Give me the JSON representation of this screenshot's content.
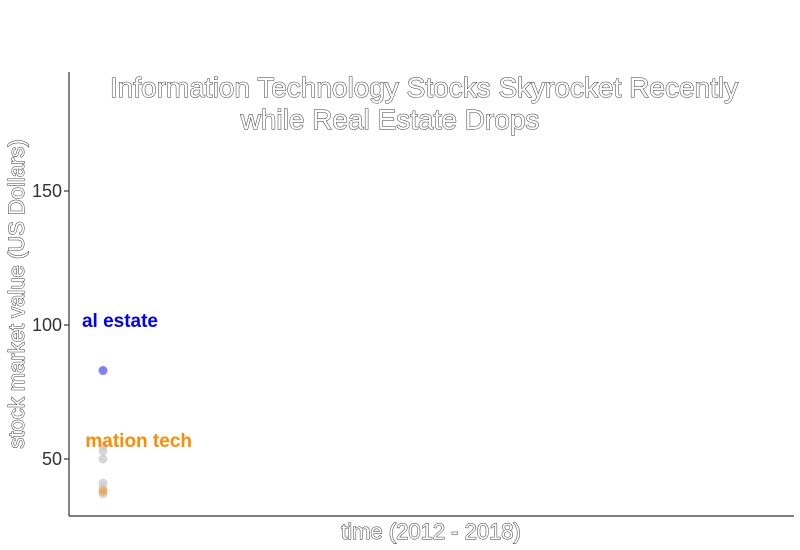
{
  "chart_data": {
    "type": "scatter",
    "title_lines": [
      "Information Technology Stocks Skyrocket Recently",
      "while Real Estate Drops"
    ],
    "xlabel": "time (2012 - 2018)",
    "ylabel": "stock market value (US Dollars)",
    "ylim": [
      30,
      190
    ],
    "yticks": [
      50,
      100,
      150
    ],
    "grid": false,
    "background_points": [
      55,
      53,
      50,
      41,
      39,
      37
    ],
    "series": [
      {
        "label": "Real estate",
        "visible_label": "al estate",
        "color": "#0000ff",
        "values": [
          83
        ]
      },
      {
        "label": "Information tech",
        "visible_label": "mation tech",
        "color": "#ff8c00",
        "values": [
          38
        ]
      }
    ],
    "colors": {
      "background_points": "#c8c8c8",
      "axis": "#333333"
    }
  }
}
